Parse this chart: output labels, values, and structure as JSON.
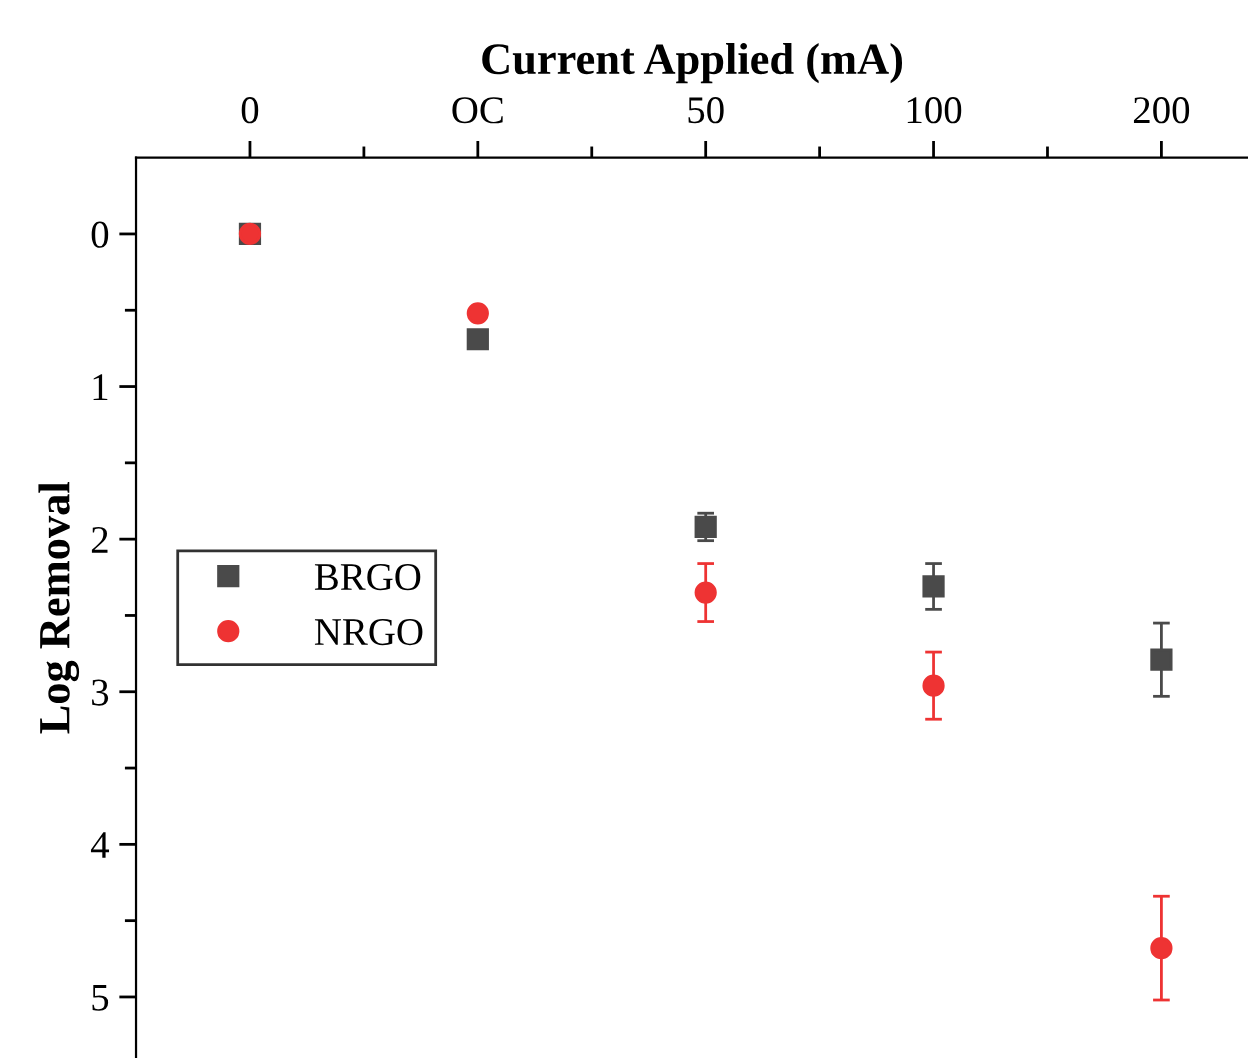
{
  "chart_data": {
    "type": "scatter",
    "xlabel": "Current Applied (mA)",
    "ylabel": "Log Removal",
    "categories": [
      "0",
      "OC",
      "50",
      "100",
      "200"
    ],
    "ylim": [
      5.4,
      -0.5
    ],
    "yticks": [
      0,
      1,
      2,
      3,
      4,
      5
    ],
    "series": [
      {
        "name": "BRGO",
        "color": "#4a4a4a",
        "marker": "square",
        "values": [
          0,
          0.69,
          1.92,
          2.31,
          2.79
        ],
        "errors": [
          null,
          null,
          0.09,
          0.15,
          0.24
        ]
      },
      {
        "name": "NRGO",
        "color": "#ee3333",
        "marker": "circle",
        "values": [
          0,
          0.52,
          2.35,
          2.96,
          4.68
        ],
        "errors": [
          null,
          null,
          0.19,
          0.22,
          0.34
        ]
      }
    ],
    "legend": "left",
    "grid": false
  }
}
